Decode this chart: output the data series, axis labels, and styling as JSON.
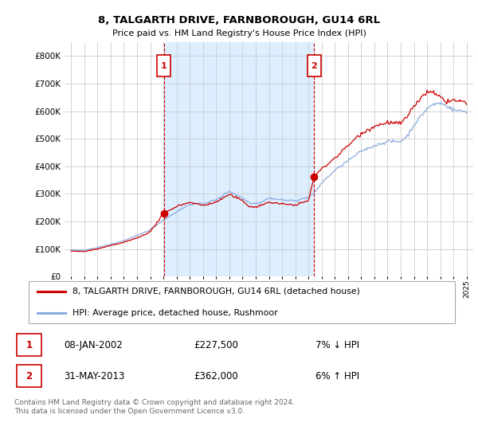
{
  "title": "8, TALGARTH DRIVE, FARNBOROUGH, GU14 6RL",
  "subtitle": "Price paid vs. HM Land Registry's House Price Index (HPI)",
  "legend_line1": "8, TALGARTH DRIVE, FARNBOROUGH, GU14 6RL (detached house)",
  "legend_line2": "HPI: Average price, detached house, Rushmoor",
  "sale1_date": "08-JAN-2002",
  "sale1_price": "£227,500",
  "sale1_hpi": "7% ↓ HPI",
  "sale2_date": "31-MAY-2013",
  "sale2_price": "£362,000",
  "sale2_hpi": "6% ↑ HPI",
  "footer": "Contains HM Land Registry data © Crown copyright and database right 2024.\nThis data is licensed under the Open Government Licence v3.0.",
  "line_color_red": "#cc0000",
  "line_color_blue": "#88aadd",
  "shade_color": "#ddeeff",
  "marker_vline_color": "#cc0000",
  "background_color": "#ffffff",
  "chart_bg_color": "#ffffff",
  "grid_color": "#cccccc",
  "ylim": [
    0,
    850000
  ],
  "yticks": [
    0,
    100000,
    200000,
    300000,
    400000,
    500000,
    600000,
    700000,
    800000
  ],
  "ytick_labels": [
    "£0",
    "£100K",
    "£200K",
    "£300K",
    "£400K",
    "£500K",
    "£600K",
    "£700K",
    "£800K"
  ],
  "sale1_year": 2002.04,
  "sale2_year": 2013.42,
  "sale1_price_val": 227500,
  "sale2_price_val": 362000
}
